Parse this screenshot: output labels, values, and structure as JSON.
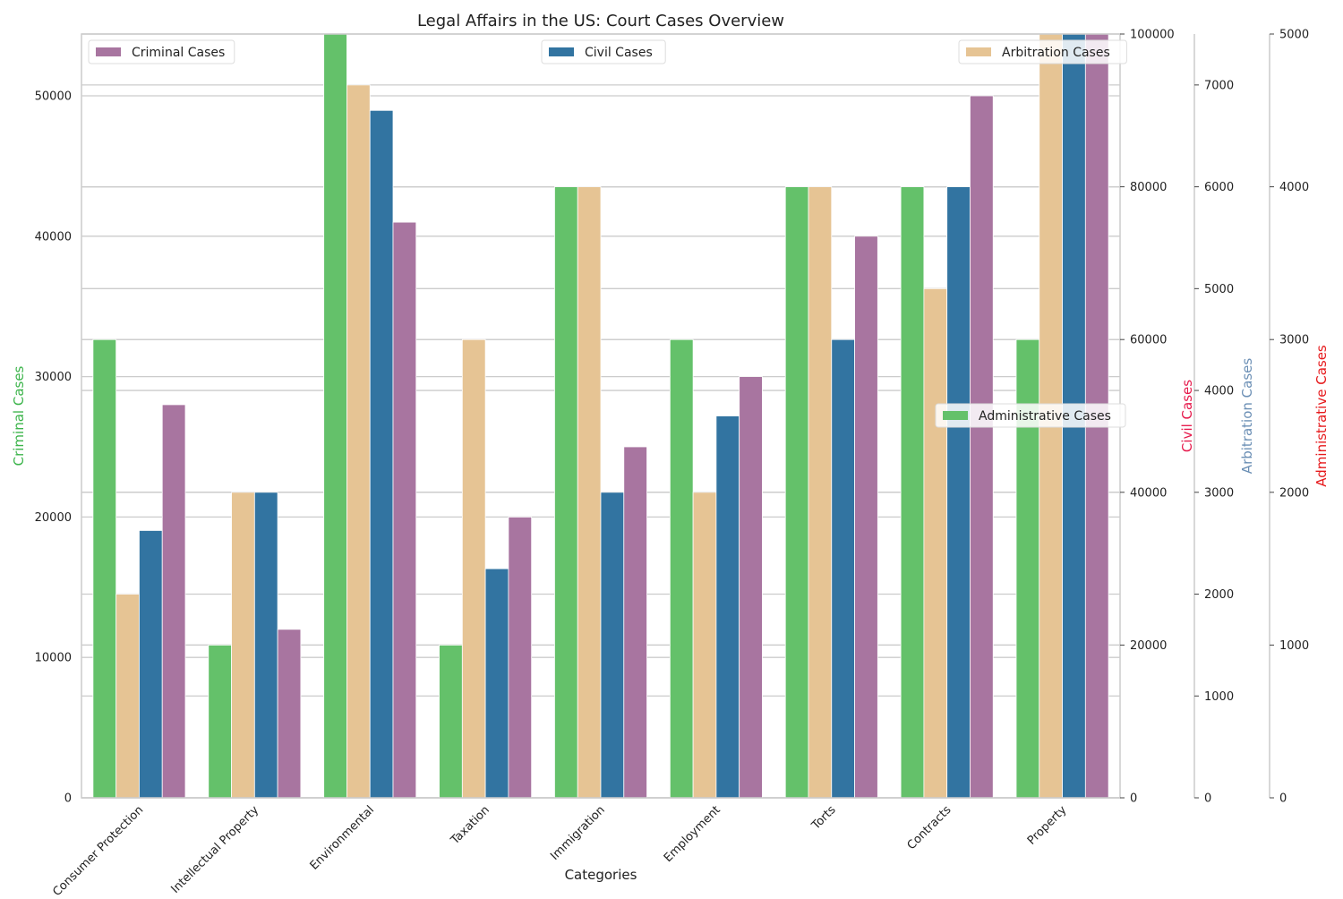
{
  "chart_data": {
    "type": "bar",
    "title": "Legal Affairs in the US: Court Cases Overview",
    "xlabel": "Categories",
    "categories": [
      "Consumer Protection",
      "Intellectual Property",
      "Environmental",
      "Taxation",
      "Immigration",
      "Employment",
      "Torts",
      "Contracts",
      "Property"
    ],
    "series": [
      {
        "name": "Administrative Cases",
        "axis": "y4",
        "color": "#64c16a",
        "values": [
          3000,
          1000,
          5000,
          1000,
          4000,
          3000,
          4000,
          4000,
          3000
        ]
      },
      {
        "name": "Arbitration Cases",
        "axis": "y3",
        "color": "#e6c494",
        "values": [
          2000,
          3000,
          7000,
          4500,
          6000,
          3000,
          6000,
          5000,
          7500
        ]
      },
      {
        "name": "Civil Cases",
        "axis": "y2",
        "color": "#3274a1",
        "values": [
          35000,
          40000,
          90000,
          30000,
          40000,
          50000,
          60000,
          80000,
          100000
        ]
      },
      {
        "name": "Criminal Cases",
        "axis": "y1",
        "color": "#a875a0",
        "values": [
          28000,
          12000,
          41000,
          20000,
          25000,
          30000,
          40000,
          50000,
          55000
        ]
      }
    ],
    "axes": {
      "y1": {
        "label": "Criminal Cases",
        "label_color": "#3cb44b",
        "min": 0,
        "max": 54400,
        "ticks": [
          0,
          10000,
          20000,
          30000,
          40000,
          50000
        ]
      },
      "y2": {
        "label": "Civil Cases",
        "label_color": "#e6194b",
        "min": 0,
        "max": 100000,
        "ticks": [
          0,
          20000,
          40000,
          60000,
          80000,
          100000
        ]
      },
      "y3": {
        "label": "Arbitration Cases",
        "label_color": "#6b8fb5",
        "min": 0,
        "max": 7500,
        "ticks": [
          0,
          1000,
          2000,
          3000,
          4000,
          5000,
          6000,
          7000
        ]
      },
      "y4": {
        "label": "Administrative Cases",
        "label_color": "#e6191b",
        "min": 0,
        "max": 5000,
        "ticks": [
          0,
          1000,
          2000,
          3000,
          4000,
          5000
        ]
      }
    },
    "legends": [
      {
        "series": "Criminal Cases",
        "placement": "upper-left"
      },
      {
        "series": "Civil Cases",
        "placement": "upper-center"
      },
      {
        "series": "Arbitration Cases",
        "placement": "upper-right"
      },
      {
        "series": "Administrative Cases",
        "placement": "center-right"
      }
    ],
    "grid": true
  }
}
